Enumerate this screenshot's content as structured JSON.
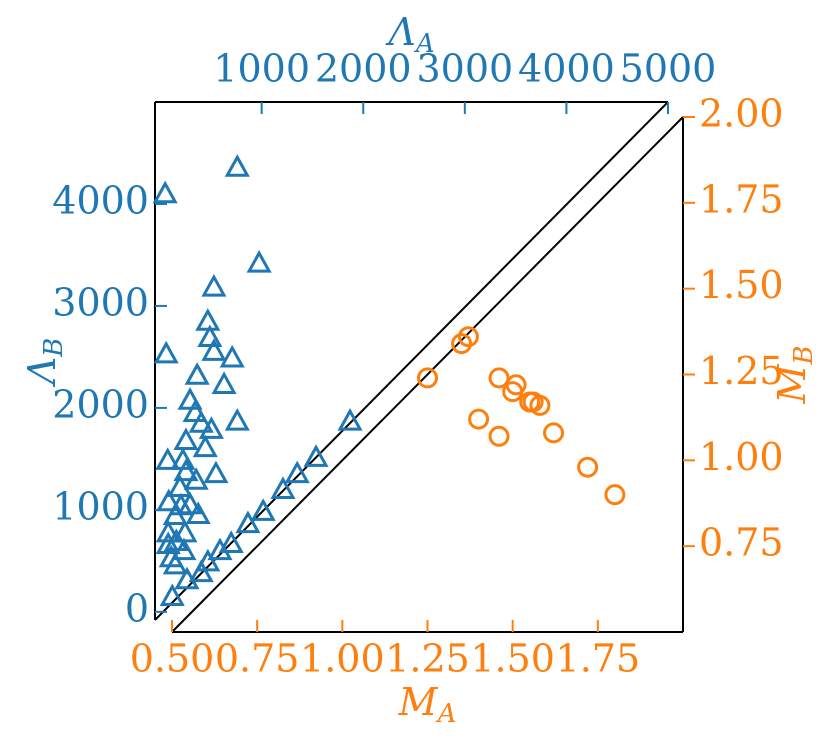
{
  "chart_data": [
    {
      "type": "scatter",
      "color": "#1f77b4",
      "marker": "triangle",
      "x_label": {
        "base": "Λ",
        "sub": "A"
      },
      "y_label": {
        "base": "Λ",
        "sub": "B"
      },
      "xaxis": "top",
      "yaxis": "left",
      "xlim": [
        -50,
        5000
      ],
      "ylim": [
        -80,
        5000
      ],
      "xticks": [
        1000,
        2000,
        3000,
        4000,
        5000
      ],
      "yticks": [
        0,
        1000,
        2000,
        3000,
        4000
      ],
      "x": [
        50,
        760,
        975,
        530,
        470,
        490,
        530,
        710,
        630,
        60,
        365,
        295,
        345,
        405,
        505,
        760,
        1870,
        445,
        255,
        75,
        225,
        255,
        355,
        550,
        195,
        85,
        150,
        205,
        295,
        375,
        80,
        160,
        80,
        245,
        110,
        235,
        150,
        265,
        405,
        470,
        590,
        700,
        865,
        1015,
        1210,
        1350,
        1535,
        120
      ],
      "y": [
        4100,
        4360,
        3420,
        3185,
        2850,
        2690,
        2555,
        2490,
        2230,
        2530,
        2320,
        2075,
        1955,
        1850,
        1790,
        1870,
        1870,
        1610,
        1680,
        1485,
        1485,
        1375,
        1290,
        1355,
        1220,
        1080,
        945,
        1040,
        1050,
        955,
        775,
        690,
        660,
        775,
        530,
        600,
        460,
        315,
        385,
        490,
        600,
        670,
        865,
        985,
        1200,
        1355,
        1515,
        150
      ]
    },
    {
      "type": "scatter",
      "color": "#ff7f0e",
      "marker": "circle",
      "x_label": {
        "base": "M",
        "sub": "A"
      },
      "y_label": {
        "base": "M",
        "sub": "B"
      },
      "xaxis": "bottom",
      "yaxis": "right",
      "xlim": [
        0.5,
        2.0
      ],
      "ylim": [
        0.5,
        2.0
      ],
      "xticks": [
        {
          "value": 0.5,
          "label": "0.50"
        },
        {
          "value": 0.75,
          "label": "0.75"
        },
        {
          "value": 1.0,
          "label": "1.00"
        },
        {
          "value": 1.25,
          "label": "1.25"
        },
        {
          "value": 1.5,
          "label": "1.50"
        },
        {
          "value": 1.75,
          "label": "1.75"
        }
      ],
      "yticks": [
        {
          "value": 0.75,
          "label": "0.75"
        },
        {
          "value": 1.0,
          "label": "1.00"
        },
        {
          "value": 1.25,
          "label": "1.25"
        },
        {
          "value": 1.5,
          "label": "1.50"
        },
        {
          "value": 1.75,
          "label": "1.75"
        },
        {
          "value": 2.0,
          "label": "2.00"
        }
      ],
      "x": [
        1.25,
        1.35,
        1.37,
        1.4,
        1.46,
        1.46,
        1.5,
        1.51,
        1.55,
        1.56,
        1.58,
        1.62,
        1.72,
        1.8
      ],
      "y": [
        1.24,
        1.34,
        1.36,
        1.12,
        1.24,
        1.07,
        1.2,
        1.22,
        1.17,
        1.17,
        1.16,
        1.08,
        0.98,
        0.9
      ]
    }
  ]
}
